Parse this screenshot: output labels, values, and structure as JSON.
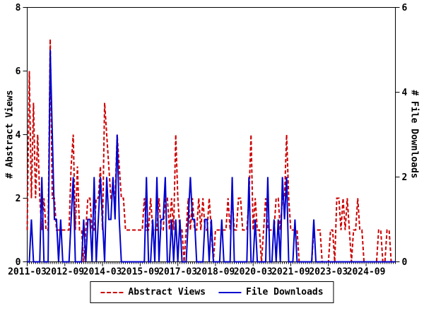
{
  "legend": {
    "abstract_views_label": "Abstract Views",
    "file_downloads_label": "File Downloads"
  },
  "chart_data": {
    "type": "line",
    "x_start_month": "2011-03",
    "x_months_count": 177,
    "x_tick_labels": [
      "2011-03",
      "2012-09",
      "2014-03",
      "2015-09",
      "2017-03",
      "2018-09",
      "2020-03",
      "2021-09",
      "2023-03",
      "2024-09"
    ],
    "x_tick_interval_months": 18,
    "grid": false,
    "legend_position": "bottom-center",
    "left_axis": {
      "label": "# Abstract Views",
      "min": 0,
      "max": 8,
      "ticks": [
        0,
        2,
        4,
        6,
        8
      ]
    },
    "right_axis": {
      "label": "# File Downloads",
      "min": 0,
      "max": 6,
      "ticks": [
        0,
        2,
        4,
        6
      ]
    },
    "series": [
      {
        "name": "Abstract Views",
        "axis": "left",
        "color": "#cc0000",
        "style": "dashed",
        "values": [
          1,
          6,
          2,
          5,
          2,
          4,
          2,
          1,
          2,
          1,
          1,
          7,
          2,
          2,
          1,
          1,
          1,
          1,
          1,
          1,
          1,
          3,
          4,
          1,
          3,
          1,
          1,
          0,
          1,
          2,
          2,
          1,
          1,
          2,
          2,
          3,
          1,
          5,
          4,
          3,
          2,
          2,
          2,
          4,
          3,
          2,
          2,
          1,
          1,
          1,
          1,
          1,
          1,
          1,
          1,
          1,
          2,
          1,
          1,
          2,
          1,
          1,
          1,
          2,
          1,
          1,
          2,
          2,
          1,
          2,
          1,
          4,
          2,
          1,
          1,
          0,
          1,
          2,
          1,
          2,
          1,
          1,
          2,
          1,
          2,
          1,
          1,
          2,
          1,
          0,
          1,
          1,
          1,
          1,
          1,
          1,
          2,
          1,
          2,
          1,
          1,
          2,
          2,
          1,
          1,
          1,
          2,
          4,
          1,
          2,
          1,
          1,
          0,
          1,
          2,
          1,
          1,
          1,
          1,
          2,
          2,
          1,
          2,
          2,
          4,
          2,
          1,
          1,
          1,
          1,
          0,
          0,
          0,
          0,
          0,
          0,
          0,
          1,
          1,
          1,
          1,
          0,
          0,
          0,
          0,
          1,
          1,
          0,
          2,
          2,
          1,
          2,
          1,
          2,
          1,
          0,
          1,
          1,
          2,
          1,
          1,
          0,
          0,
          0,
          0,
          0,
          0,
          0,
          1,
          1,
          0,
          0,
          1,
          1,
          0,
          0,
          0
        ]
      },
      {
        "name": "File Downloads",
        "axis": "right",
        "color": "#0000cd",
        "style": "solid",
        "values": [
          0,
          0,
          1,
          0,
          0,
          0,
          0,
          2,
          0,
          0,
          0,
          5,
          3,
          1,
          1,
          0,
          1,
          0,
          0,
          0,
          0,
          1,
          2,
          0,
          0,
          0,
          0,
          1,
          0,
          1,
          1,
          0,
          2,
          0,
          1,
          2,
          1,
          0,
          2,
          1,
          1,
          2,
          1,
          3,
          1,
          0,
          0,
          0,
          0,
          0,
          0,
          0,
          0,
          0,
          0,
          0,
          0,
          2,
          0,
          0,
          1,
          0,
          2,
          0,
          1,
          1,
          2,
          0,
          0,
          1,
          0,
          1,
          0,
          1,
          0,
          0,
          0,
          1,
          2,
          1,
          1,
          0,
          0,
          0,
          0,
          1,
          1,
          0,
          1,
          0,
          0,
          0,
          0,
          1,
          0,
          0,
          0,
          0,
          2,
          0,
          0,
          0,
          0,
          0,
          0,
          0,
          2,
          0,
          0,
          1,
          0,
          0,
          0,
          0,
          0,
          2,
          0,
          0,
          1,
          0,
          1,
          0,
          2,
          1,
          2,
          0,
          0,
          0,
          1,
          0,
          0,
          0,
          0,
          0,
          0,
          0,
          0,
          1,
          0,
          0,
          0,
          0,
          0,
          0,
          0,
          0,
          0,
          0,
          0,
          0,
          0,
          0,
          0,
          0,
          0,
          0,
          0,
          0,
          0,
          0,
          0,
          0,
          0,
          0,
          0,
          0,
          0,
          0,
          0,
          0,
          0,
          0,
          0,
          0,
          0,
          0,
          0
        ]
      }
    ]
  }
}
